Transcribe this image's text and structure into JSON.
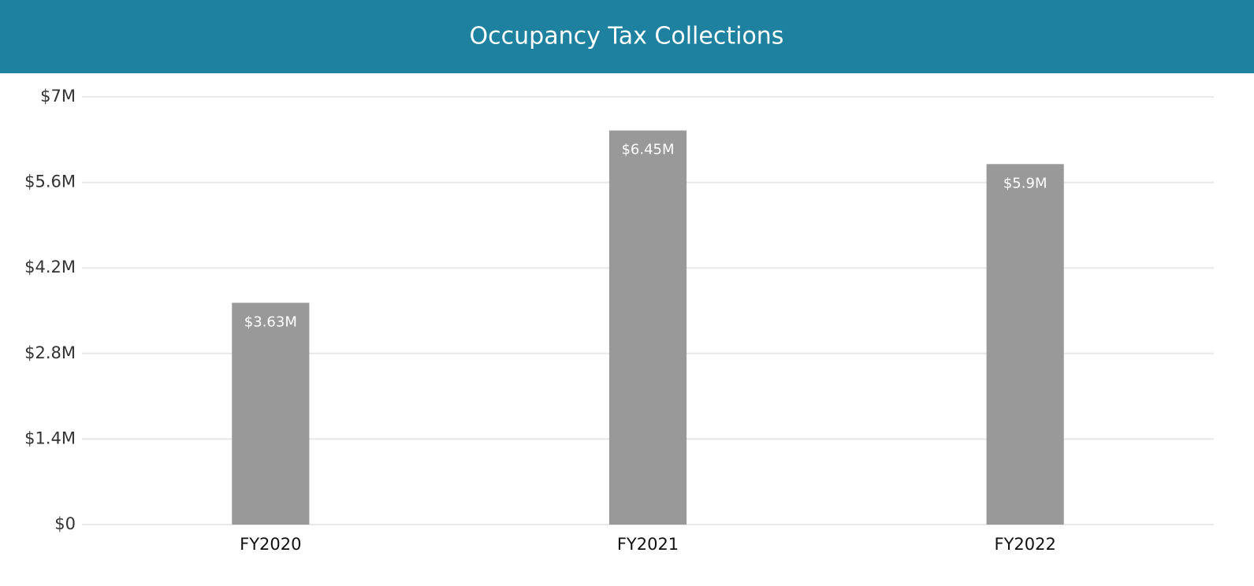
{
  "chart_data": {
    "type": "bar",
    "title": "Occupancy Tax Collections",
    "categories": [
      "FY2020",
      "FY2021",
      "FY2022"
    ],
    "values": [
      3630000,
      6450000,
      5900000
    ],
    "value_labels": [
      "$3.63M",
      "$6.45M",
      "$5.9M"
    ],
    "color": "#999999",
    "ylim": [
      0,
      7000000
    ],
    "yticks": [
      {
        "value": 0,
        "label": "$0"
      },
      {
        "value": 1400000,
        "label": "$1.4M"
      },
      {
        "value": 2800000,
        "label": "$2.8M"
      },
      {
        "value": 4200000,
        "label": "$4.2M"
      },
      {
        "value": 5600000,
        "label": "$5.6M"
      },
      {
        "value": 7000000,
        "label": "$7M"
      }
    ],
    "grid": true
  }
}
